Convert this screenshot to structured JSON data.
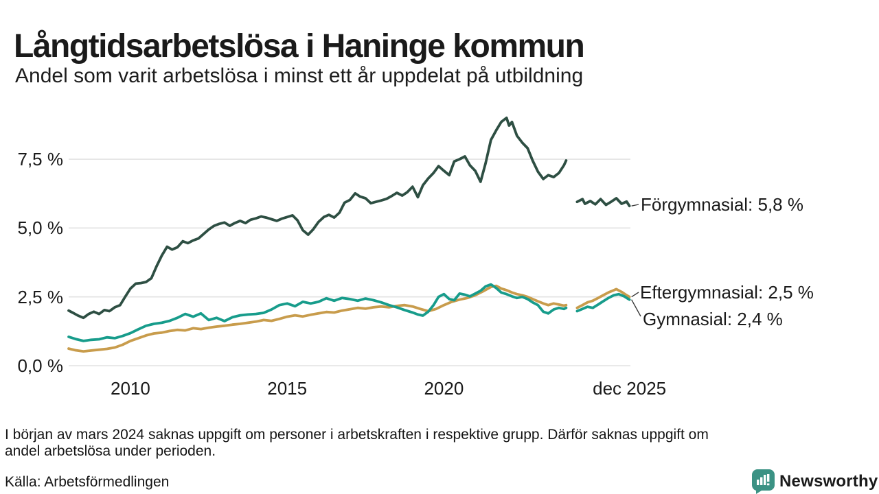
{
  "title": "Långtidsarbetslösa i Haninge kommun",
  "subtitle": "Andel som varit arbetslösa i minst ett år uppdelat på utbildning",
  "footnote": {
    "lines": [
      "I början av mars 2024 saknas uppgift om personer i arbetskraften i respektive grupp. Därför saknas uppgift om",
      "andel arbetslösa under perioden."
    ]
  },
  "source": "Källa: Arbetsförmedlingen",
  "branding": {
    "name": "Newsworthy",
    "color": "#3b9284",
    "icon": "newsworthy-speech-bubble-bar-chart-icon"
  },
  "colors": {
    "background": "#ffffff",
    "gridline": "#e2e2e2",
    "text": "#1a1a1a",
    "connector": "#3a3a3a"
  },
  "chart_data": {
    "type": "line",
    "unit": "%",
    "grid": "horizontal",
    "x_domain": [
      2008.03,
      2025.95
    ],
    "ylim": [
      0,
      9.3
    ],
    "missing_data_gap": [
      2023.9,
      2024.25
    ],
    "yticks": [
      {
        "value": 7.5,
        "label": "7,5 %"
      },
      {
        "value": 5.0,
        "label": "5,0 %"
      },
      {
        "value": 2.5,
        "label": "2,5 %"
      },
      {
        "value": 0.0,
        "label": "0,0 %"
      }
    ],
    "xticks": [
      {
        "year": 2010,
        "label": "2010"
      },
      {
        "year": 2015,
        "label": "2015"
      },
      {
        "year": 2020,
        "label": "2020"
      },
      {
        "year": 2025.92,
        "label": "dec 2025"
      }
    ],
    "series": [
      {
        "name": "Förgymnasial",
        "end_value": 5.8,
        "end_label": "Förgymnasial: 5,8 %",
        "color": "#2e4f43",
        "data": [
          [
            2008.03,
            2.0
          ],
          [
            2008.17,
            1.92
          ],
          [
            2008.33,
            1.82
          ],
          [
            2008.5,
            1.74
          ],
          [
            2008.67,
            1.88
          ],
          [
            2008.83,
            1.96
          ],
          [
            2009.0,
            1.88
          ],
          [
            2009.17,
            2.02
          ],
          [
            2009.33,
            1.98
          ],
          [
            2009.5,
            2.12
          ],
          [
            2009.67,
            2.2
          ],
          [
            2009.83,
            2.5
          ],
          [
            2010.0,
            2.8
          ],
          [
            2010.17,
            2.98
          ],
          [
            2010.33,
            3.0
          ],
          [
            2010.5,
            3.04
          ],
          [
            2010.67,
            3.18
          ],
          [
            2010.83,
            3.6
          ],
          [
            2011.0,
            4.0
          ],
          [
            2011.17,
            4.32
          ],
          [
            2011.33,
            4.22
          ],
          [
            2011.5,
            4.3
          ],
          [
            2011.67,
            4.52
          ],
          [
            2011.83,
            4.45
          ],
          [
            2012.0,
            4.55
          ],
          [
            2012.17,
            4.62
          ],
          [
            2012.33,
            4.78
          ],
          [
            2012.5,
            4.95
          ],
          [
            2012.67,
            5.08
          ],
          [
            2012.83,
            5.15
          ],
          [
            2013.0,
            5.2
          ],
          [
            2013.17,
            5.08
          ],
          [
            2013.33,
            5.18
          ],
          [
            2013.5,
            5.26
          ],
          [
            2013.67,
            5.18
          ],
          [
            2013.83,
            5.3
          ],
          [
            2014.0,
            5.35
          ],
          [
            2014.17,
            5.42
          ],
          [
            2014.33,
            5.38
          ],
          [
            2014.5,
            5.32
          ],
          [
            2014.67,
            5.26
          ],
          [
            2014.83,
            5.34
          ],
          [
            2015.0,
            5.4
          ],
          [
            2015.17,
            5.46
          ],
          [
            2015.33,
            5.28
          ],
          [
            2015.5,
            4.92
          ],
          [
            2015.67,
            4.76
          ],
          [
            2015.83,
            4.95
          ],
          [
            2016.0,
            5.22
          ],
          [
            2016.17,
            5.4
          ],
          [
            2016.33,
            5.48
          ],
          [
            2016.5,
            5.38
          ],
          [
            2016.67,
            5.56
          ],
          [
            2016.83,
            5.92
          ],
          [
            2017.0,
            6.02
          ],
          [
            2017.17,
            6.26
          ],
          [
            2017.33,
            6.14
          ],
          [
            2017.5,
            6.08
          ],
          [
            2017.67,
            5.9
          ],
          [
            2017.83,
            5.95
          ],
          [
            2018.0,
            6.0
          ],
          [
            2018.17,
            6.06
          ],
          [
            2018.33,
            6.16
          ],
          [
            2018.5,
            6.28
          ],
          [
            2018.67,
            6.18
          ],
          [
            2018.83,
            6.3
          ],
          [
            2019.0,
            6.5
          ],
          [
            2019.17,
            6.12
          ],
          [
            2019.33,
            6.55
          ],
          [
            2019.5,
            6.8
          ],
          [
            2019.67,
            7.0
          ],
          [
            2019.83,
            7.25
          ],
          [
            2020.0,
            7.08
          ],
          [
            2020.17,
            6.92
          ],
          [
            2020.33,
            7.42
          ],
          [
            2020.5,
            7.5
          ],
          [
            2020.67,
            7.6
          ],
          [
            2020.83,
            7.28
          ],
          [
            2021.0,
            7.08
          ],
          [
            2021.17,
            6.68
          ],
          [
            2021.33,
            7.35
          ],
          [
            2021.5,
            8.2
          ],
          [
            2021.67,
            8.55
          ],
          [
            2021.83,
            8.85
          ],
          [
            2022.0,
            9.0
          ],
          [
            2022.08,
            8.72
          ],
          [
            2022.17,
            8.85
          ],
          [
            2022.33,
            8.35
          ],
          [
            2022.5,
            8.1
          ],
          [
            2022.67,
            7.9
          ],
          [
            2022.83,
            7.45
          ],
          [
            2023.0,
            7.05
          ],
          [
            2023.17,
            6.78
          ],
          [
            2023.33,
            6.92
          ],
          [
            2023.5,
            6.85
          ],
          [
            2023.67,
            7.0
          ],
          [
            2023.83,
            7.28
          ],
          [
            2023.9,
            7.45
          ],
          null,
          [
            2024.25,
            5.95
          ],
          [
            2024.42,
            6.05
          ],
          [
            2024.5,
            5.88
          ],
          [
            2024.67,
            5.98
          ],
          [
            2024.83,
            5.86
          ],
          [
            2025.0,
            6.05
          ],
          [
            2025.17,
            5.84
          ],
          [
            2025.33,
            5.95
          ],
          [
            2025.5,
            6.08
          ],
          [
            2025.67,
            5.88
          ],
          [
            2025.83,
            5.96
          ],
          [
            2025.92,
            5.8
          ]
        ]
      },
      {
        "name": "Eftergymnasial",
        "end_value": 2.5,
        "end_label": "Eftergymnasial: 2,5 %",
        "color": "#c89c4c",
        "data": [
          [
            2008.03,
            0.62
          ],
          [
            2008.25,
            0.56
          ],
          [
            2008.5,
            0.52
          ],
          [
            2008.75,
            0.55
          ],
          [
            2009.0,
            0.58
          ],
          [
            2009.25,
            0.61
          ],
          [
            2009.5,
            0.66
          ],
          [
            2009.75,
            0.76
          ],
          [
            2010.0,
            0.9
          ],
          [
            2010.25,
            1.0
          ],
          [
            2010.5,
            1.1
          ],
          [
            2010.75,
            1.17
          ],
          [
            2011.0,
            1.2
          ],
          [
            2011.25,
            1.26
          ],
          [
            2011.5,
            1.3
          ],
          [
            2011.75,
            1.28
          ],
          [
            2012.0,
            1.36
          ],
          [
            2012.25,
            1.33
          ],
          [
            2012.5,
            1.38
          ],
          [
            2012.75,
            1.42
          ],
          [
            2013.0,
            1.45
          ],
          [
            2013.25,
            1.49
          ],
          [
            2013.5,
            1.52
          ],
          [
            2013.75,
            1.56
          ],
          [
            2014.0,
            1.6
          ],
          [
            2014.25,
            1.66
          ],
          [
            2014.5,
            1.63
          ],
          [
            2014.75,
            1.7
          ],
          [
            2015.0,
            1.78
          ],
          [
            2015.25,
            1.83
          ],
          [
            2015.5,
            1.79
          ],
          [
            2015.75,
            1.85
          ],
          [
            2016.0,
            1.9
          ],
          [
            2016.25,
            1.95
          ],
          [
            2016.5,
            1.93
          ],
          [
            2016.75,
            2.0
          ],
          [
            2017.0,
            2.05
          ],
          [
            2017.25,
            2.1
          ],
          [
            2017.5,
            2.07
          ],
          [
            2017.75,
            2.12
          ],
          [
            2018.0,
            2.15
          ],
          [
            2018.25,
            2.12
          ],
          [
            2018.5,
            2.17
          ],
          [
            2018.75,
            2.2
          ],
          [
            2019.0,
            2.15
          ],
          [
            2019.25,
            2.06
          ],
          [
            2019.5,
            1.98
          ],
          [
            2019.75,
            2.06
          ],
          [
            2020.0,
            2.2
          ],
          [
            2020.25,
            2.32
          ],
          [
            2020.5,
            2.4
          ],
          [
            2020.75,
            2.46
          ],
          [
            2021.0,
            2.56
          ],
          [
            2021.25,
            2.7
          ],
          [
            2021.5,
            2.86
          ],
          [
            2021.67,
            2.9
          ],
          [
            2021.83,
            2.8
          ],
          [
            2022.0,
            2.74
          ],
          [
            2022.17,
            2.66
          ],
          [
            2022.33,
            2.6
          ],
          [
            2022.5,
            2.56
          ],
          [
            2022.67,
            2.5
          ],
          [
            2022.83,
            2.42
          ],
          [
            2023.0,
            2.34
          ],
          [
            2023.17,
            2.26
          ],
          [
            2023.33,
            2.2
          ],
          [
            2023.5,
            2.26
          ],
          [
            2023.67,
            2.22
          ],
          [
            2023.83,
            2.18
          ],
          [
            2023.9,
            2.2
          ],
          null,
          [
            2024.25,
            2.1
          ],
          [
            2024.42,
            2.2
          ],
          [
            2024.58,
            2.3
          ],
          [
            2024.75,
            2.36
          ],
          [
            2024.92,
            2.46
          ],
          [
            2025.08,
            2.56
          ],
          [
            2025.25,
            2.66
          ],
          [
            2025.42,
            2.74
          ],
          [
            2025.5,
            2.78
          ],
          [
            2025.67,
            2.68
          ],
          [
            2025.83,
            2.56
          ],
          [
            2025.92,
            2.5
          ]
        ]
      },
      {
        "name": "Gymnasial",
        "end_value": 2.4,
        "end_label": "Gymnasial: 2,4 %",
        "color": "#179c8b",
        "data": [
          [
            2008.03,
            1.05
          ],
          [
            2008.25,
            0.97
          ],
          [
            2008.5,
            0.9
          ],
          [
            2008.75,
            0.94
          ],
          [
            2009.0,
            0.96
          ],
          [
            2009.25,
            1.03
          ],
          [
            2009.5,
            1.0
          ],
          [
            2009.75,
            1.08
          ],
          [
            2010.0,
            1.18
          ],
          [
            2010.25,
            1.32
          ],
          [
            2010.5,
            1.45
          ],
          [
            2010.75,
            1.52
          ],
          [
            2011.0,
            1.56
          ],
          [
            2011.25,
            1.63
          ],
          [
            2011.5,
            1.74
          ],
          [
            2011.75,
            1.88
          ],
          [
            2012.0,
            1.78
          ],
          [
            2012.25,
            1.9
          ],
          [
            2012.5,
            1.66
          ],
          [
            2012.75,
            1.74
          ],
          [
            2013.0,
            1.62
          ],
          [
            2013.25,
            1.76
          ],
          [
            2013.5,
            1.83
          ],
          [
            2013.75,
            1.86
          ],
          [
            2014.0,
            1.88
          ],
          [
            2014.25,
            1.92
          ],
          [
            2014.5,
            2.04
          ],
          [
            2014.75,
            2.2
          ],
          [
            2015.0,
            2.26
          ],
          [
            2015.25,
            2.16
          ],
          [
            2015.5,
            2.32
          ],
          [
            2015.75,
            2.26
          ],
          [
            2016.0,
            2.32
          ],
          [
            2016.25,
            2.45
          ],
          [
            2016.5,
            2.36
          ],
          [
            2016.75,
            2.46
          ],
          [
            2017.0,
            2.42
          ],
          [
            2017.25,
            2.36
          ],
          [
            2017.5,
            2.44
          ],
          [
            2017.75,
            2.38
          ],
          [
            2018.0,
            2.3
          ],
          [
            2018.25,
            2.2
          ],
          [
            2018.5,
            2.12
          ],
          [
            2018.75,
            2.02
          ],
          [
            2019.0,
            1.93
          ],
          [
            2019.17,
            1.86
          ],
          [
            2019.33,
            1.82
          ],
          [
            2019.5,
            1.96
          ],
          [
            2019.67,
            2.2
          ],
          [
            2019.83,
            2.5
          ],
          [
            2020.0,
            2.6
          ],
          [
            2020.17,
            2.42
          ],
          [
            2020.33,
            2.38
          ],
          [
            2020.5,
            2.62
          ],
          [
            2020.67,
            2.58
          ],
          [
            2020.83,
            2.52
          ],
          [
            2021.0,
            2.62
          ],
          [
            2021.17,
            2.72
          ],
          [
            2021.33,
            2.88
          ],
          [
            2021.5,
            2.95
          ],
          [
            2021.67,
            2.82
          ],
          [
            2021.83,
            2.66
          ],
          [
            2022.0,
            2.6
          ],
          [
            2022.17,
            2.52
          ],
          [
            2022.33,
            2.46
          ],
          [
            2022.5,
            2.5
          ],
          [
            2022.67,
            2.42
          ],
          [
            2022.83,
            2.3
          ],
          [
            2023.0,
            2.2
          ],
          [
            2023.17,
            1.96
          ],
          [
            2023.33,
            1.9
          ],
          [
            2023.5,
            2.04
          ],
          [
            2023.67,
            2.1
          ],
          [
            2023.83,
            2.06
          ],
          [
            2023.9,
            2.1
          ],
          null,
          [
            2024.25,
            1.98
          ],
          [
            2024.42,
            2.06
          ],
          [
            2024.58,
            2.14
          ],
          [
            2024.75,
            2.1
          ],
          [
            2024.92,
            2.22
          ],
          [
            2025.08,
            2.34
          ],
          [
            2025.25,
            2.46
          ],
          [
            2025.42,
            2.56
          ],
          [
            2025.58,
            2.6
          ],
          [
            2025.75,
            2.52
          ],
          [
            2025.85,
            2.45
          ],
          [
            2025.92,
            2.4
          ]
        ]
      }
    ]
  }
}
